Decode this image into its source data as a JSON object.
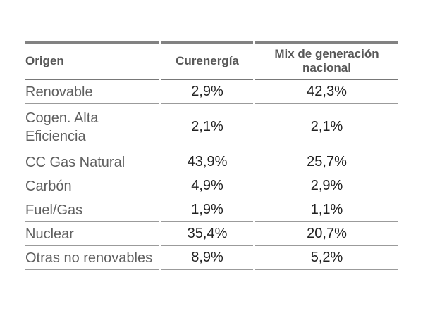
{
  "table": {
    "header": {
      "origen": "Origen",
      "curenergia": "Curenergía",
      "mix": "Mix de generación nacional"
    },
    "rows": [
      {
        "origen": "Renovable",
        "curenergia": "2,9%",
        "mix": "42,3%"
      },
      {
        "origen": "Cogen. Alta Eficiencia",
        "curenergia": "2,1%",
        "mix": "2,1%"
      },
      {
        "origen": "CC Gas Natural",
        "curenergia": "43,9%",
        "mix": "25,7%"
      },
      {
        "origen": "Carbón",
        "curenergia": "4,9%",
        "mix": "2,9%"
      },
      {
        "origen": "Fuel/Gas",
        "curenergia": "1,9%",
        "mix": "1,1%"
      },
      {
        "origen": "Nuclear",
        "curenergia": "35,4%",
        "mix": "20,7%"
      },
      {
        "origen": "Otras no renovables",
        "curenergia": "8,9%",
        "mix": "5,2%"
      }
    ],
    "colors": {
      "header_text": "#575757",
      "label_text": "#5f5f5f",
      "value_text": "#212121",
      "border_thick": "#828282",
      "border_thin": "#9b9b9b",
      "background": "#ffffff"
    }
  },
  "chart_data": {
    "type": "table",
    "title": "",
    "columns": [
      "Origen",
      "Curenergía",
      "Mix de generación nacional"
    ],
    "categories": [
      "Renovable",
      "Cogen. Alta Eficiencia",
      "CC Gas Natural",
      "Carbón",
      "Fuel/Gas",
      "Nuclear",
      "Otras no renovables"
    ],
    "series": [
      {
        "name": "Curenergía",
        "values": [
          2.9,
          2.1,
          43.9,
          4.9,
          1.9,
          35.4,
          8.9
        ]
      },
      {
        "name": "Mix de generación nacional",
        "values": [
          42.3,
          2.1,
          25.7,
          2.9,
          1.1,
          20.7,
          5.2
        ]
      }
    ],
    "unit": "%"
  }
}
